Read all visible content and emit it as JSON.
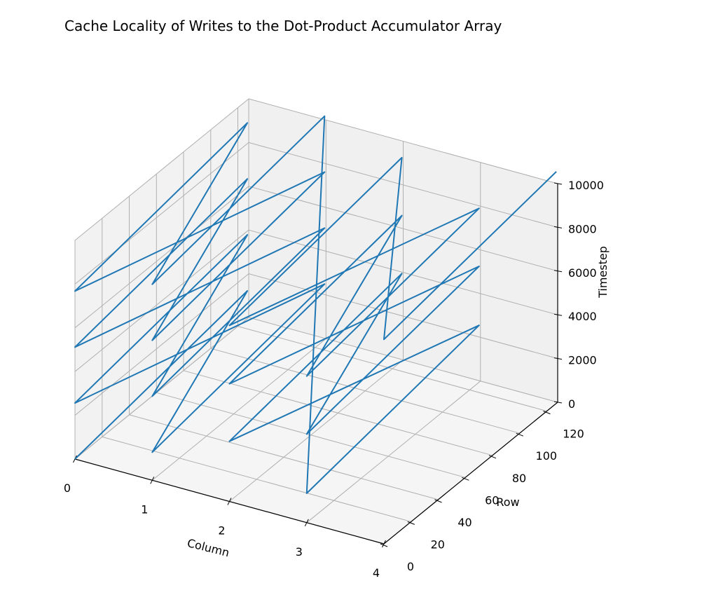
{
  "chart_data": {
    "type": "line",
    "title": "Cache Locality of Writes to the Dot-Product Accumulator Array",
    "xlabel": "Column",
    "ylabel": "Row",
    "zlabel": "Timestep",
    "xlim": [
      0,
      4
    ],
    "ylim": [
      0,
      128
    ],
    "zlim": [
      0,
      10000
    ],
    "xticks": [
      "0",
      "1",
      "2",
      "3",
      "4"
    ],
    "yticks": [
      "0",
      "20",
      "40",
      "60",
      "80",
      "100",
      "120"
    ],
    "zticks": [
      "0",
      "2000",
      "4000",
      "6000",
      "8000",
      "10000"
    ],
    "grid": true,
    "projection": "3d",
    "series": [
      {
        "color": "#1f77b4",
        "points": [
          [
            0,
            0,
            0
          ],
          [
            0,
            127,
            1270
          ],
          [
            1,
            0,
            1280
          ],
          [
            1,
            127,
            2550
          ],
          [
            0,
            0,
            2560
          ],
          [
            0,
            127,
            3830
          ],
          [
            1,
            0,
            3840
          ],
          [
            1,
            127,
            5110
          ],
          [
            0,
            0,
            5120
          ],
          [
            0,
            127,
            6390
          ],
          [
            1,
            0,
            6400
          ],
          [
            1,
            127,
            7670
          ],
          [
            0,
            0,
            7680
          ],
          [
            0,
            127,
            8950
          ],
          [
            1,
            0,
            8960
          ],
          [
            1,
            127,
            10230
          ],
          [
            3,
            0,
            1340
          ],
          [
            3,
            127,
            2600
          ],
          [
            2,
            0,
            2750
          ],
          [
            2,
            127,
            4000
          ],
          [
            3,
            0,
            4050
          ],
          [
            3,
            127,
            5300
          ],
          [
            2,
            0,
            5380
          ],
          [
            2,
            127,
            6650
          ],
          [
            3,
            0,
            6700
          ],
          [
            3,
            127,
            7950
          ],
          [
            2,
            0,
            8050
          ],
          [
            2,
            127,
            9300
          ],
          [
            4,
            0,
            9350
          ],
          [
            4,
            127,
            10600
          ]
        ]
      }
    ]
  }
}
